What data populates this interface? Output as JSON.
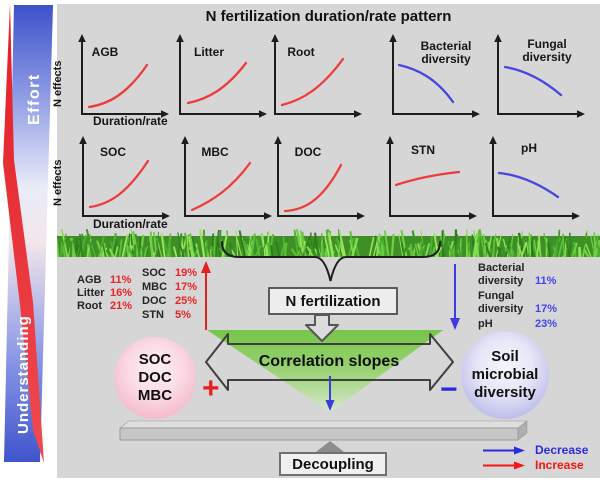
{
  "title": "N fertilization duration/rate pattern",
  "sidebar": {
    "effort": "Effort",
    "understanding": "Understanding"
  },
  "axes": {
    "y_label": "N effects",
    "x_label": "Duration/rate"
  },
  "plots": {
    "row1": [
      {
        "label": "AGB",
        "trend": "increase"
      },
      {
        "label": "Litter",
        "trend": "increase"
      },
      {
        "label": "Root",
        "trend": "increase"
      },
      {
        "label": "Bacterial diversity",
        "line1": "Bacterial",
        "line2": "diversity",
        "trend": "decrease"
      },
      {
        "label": "Fungal diversity",
        "line1": "Fungal",
        "line2": "diversity",
        "trend": "decrease"
      }
    ],
    "row2": [
      {
        "label": "SOC",
        "trend": "increase"
      },
      {
        "label": "MBC",
        "trend": "increase"
      },
      {
        "label": "DOC",
        "trend": "increase"
      },
      {
        "label": "STN",
        "trend": "increase-saturating"
      },
      {
        "label": "pH",
        "trend": "decrease"
      }
    ]
  },
  "stats": {
    "left_col1": [
      {
        "label": "AGB",
        "value": "11%"
      },
      {
        "label": "Litter",
        "value": "16%"
      },
      {
        "label": "Root",
        "value": "21%"
      }
    ],
    "left_col2": [
      {
        "label": "SOC",
        "value": "19%"
      },
      {
        "label": "MBC",
        "value": "17%"
      },
      {
        "label": "DOC",
        "value": "25%"
      },
      {
        "label": "STN",
        "value": "5%"
      }
    ],
    "right": [
      {
        "label": "Bacterial diversity",
        "value": "11%"
      },
      {
        "label": "Fungal diversity",
        "value": "17%"
      },
      {
        "label": "pH",
        "value": "23%"
      }
    ]
  },
  "center": {
    "n_fertilization": "N fertilization",
    "correlation": "Correlation slopes",
    "decoupling": "Decoupling"
  },
  "balance": {
    "left_circle": {
      "lines": [
        "SOC",
        "DOC",
        "MBC"
      ],
      "sign": "+"
    },
    "right_circle": {
      "lines": [
        "Soil",
        "microbial",
        "diversity"
      ],
      "sign": "−"
    }
  },
  "legend": [
    {
      "label": "Decrease",
      "color": "#2b2bdf"
    },
    {
      "label": "Increase",
      "color": "#f51515"
    }
  ],
  "colors": {
    "curve_increase": "#ee3b3b",
    "curve_decrease": "#4646e0",
    "stat_red": "#e82525",
    "stat_blue": "#4343f0",
    "green_fill": "#76c548",
    "panel_bg": "#d6d6d6"
  }
}
